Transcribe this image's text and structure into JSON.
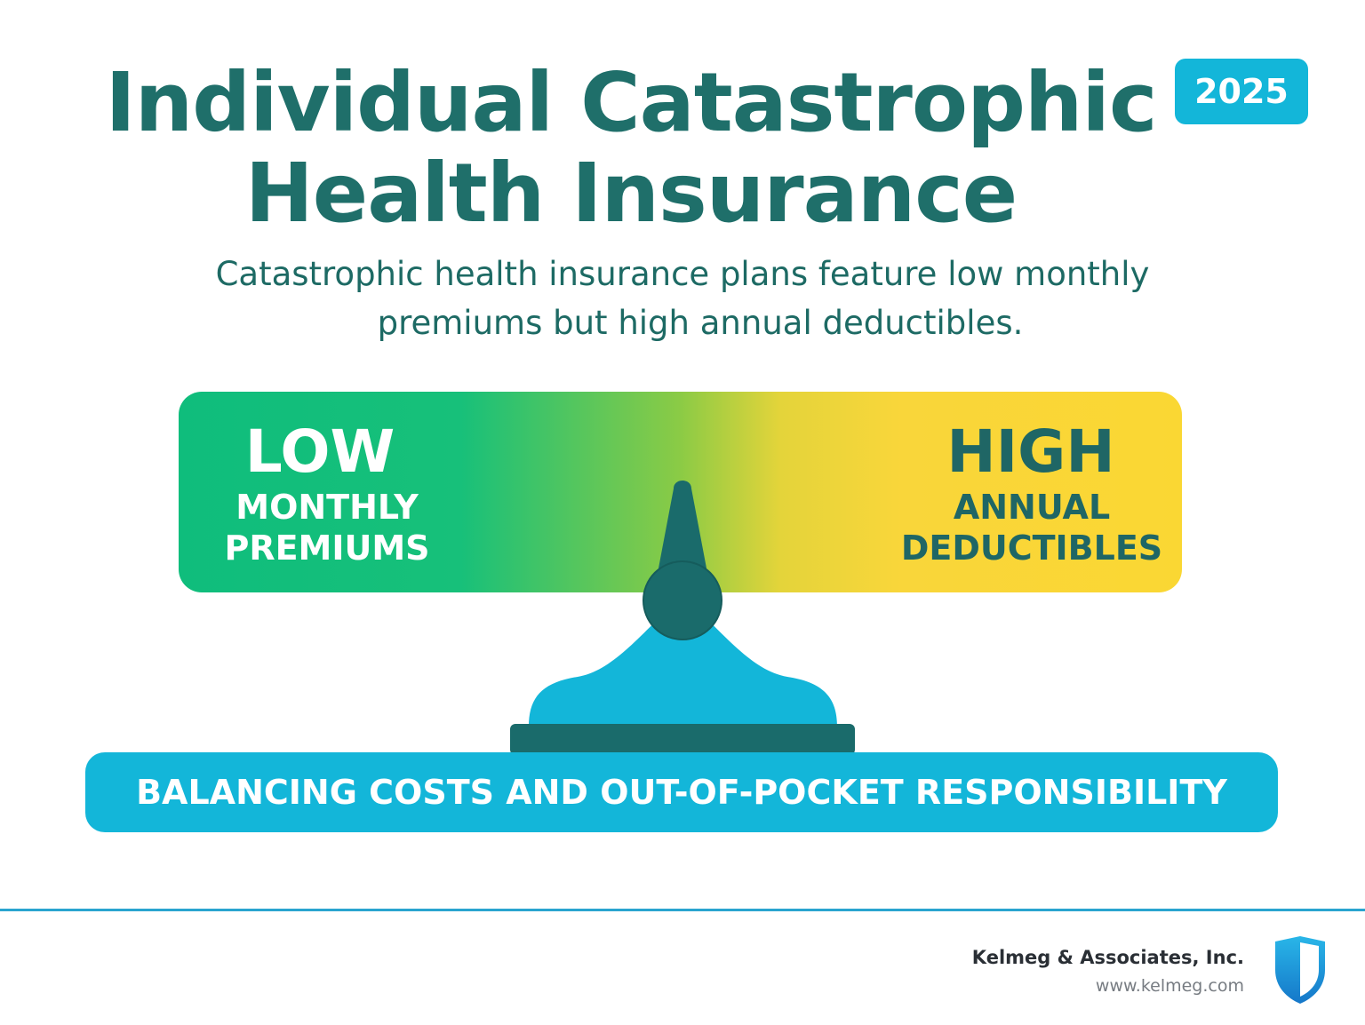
{
  "header": {
    "title_line1": "Individual Catastrophic",
    "title_line2": "Health Insurance",
    "year_badge": "2025",
    "subtitle_line1": "Catastrophic health insurance plans feature low monthly",
    "subtitle_line2": "premiums but high annual deductibles."
  },
  "scale": {
    "left": {
      "heading": "LOW",
      "line1": "MONTHLY",
      "line2": "PREMIUMS",
      "color": "#0fbd7c"
    },
    "right": {
      "heading": "HIGH",
      "line1": "ANNUAL",
      "line2": "DEDUCTIBLES",
      "color": "#fad733"
    },
    "fulcrum_icon": "balance-scale-icon"
  },
  "banner": {
    "text": "BALANCING COSTS AND OUT-OF-POCKET RESPONSIBILITY",
    "color": "#13b6d9"
  },
  "footer": {
    "company": "Kelmeg & Associates, Inc.",
    "website": "www.kelmeg.com",
    "logo_icon": "shield-icon",
    "accent": "#2aa4cf"
  },
  "colors": {
    "title": "#1f6f6a",
    "dark_teal": "#1a6b6b",
    "cyan": "#13b6d9"
  }
}
